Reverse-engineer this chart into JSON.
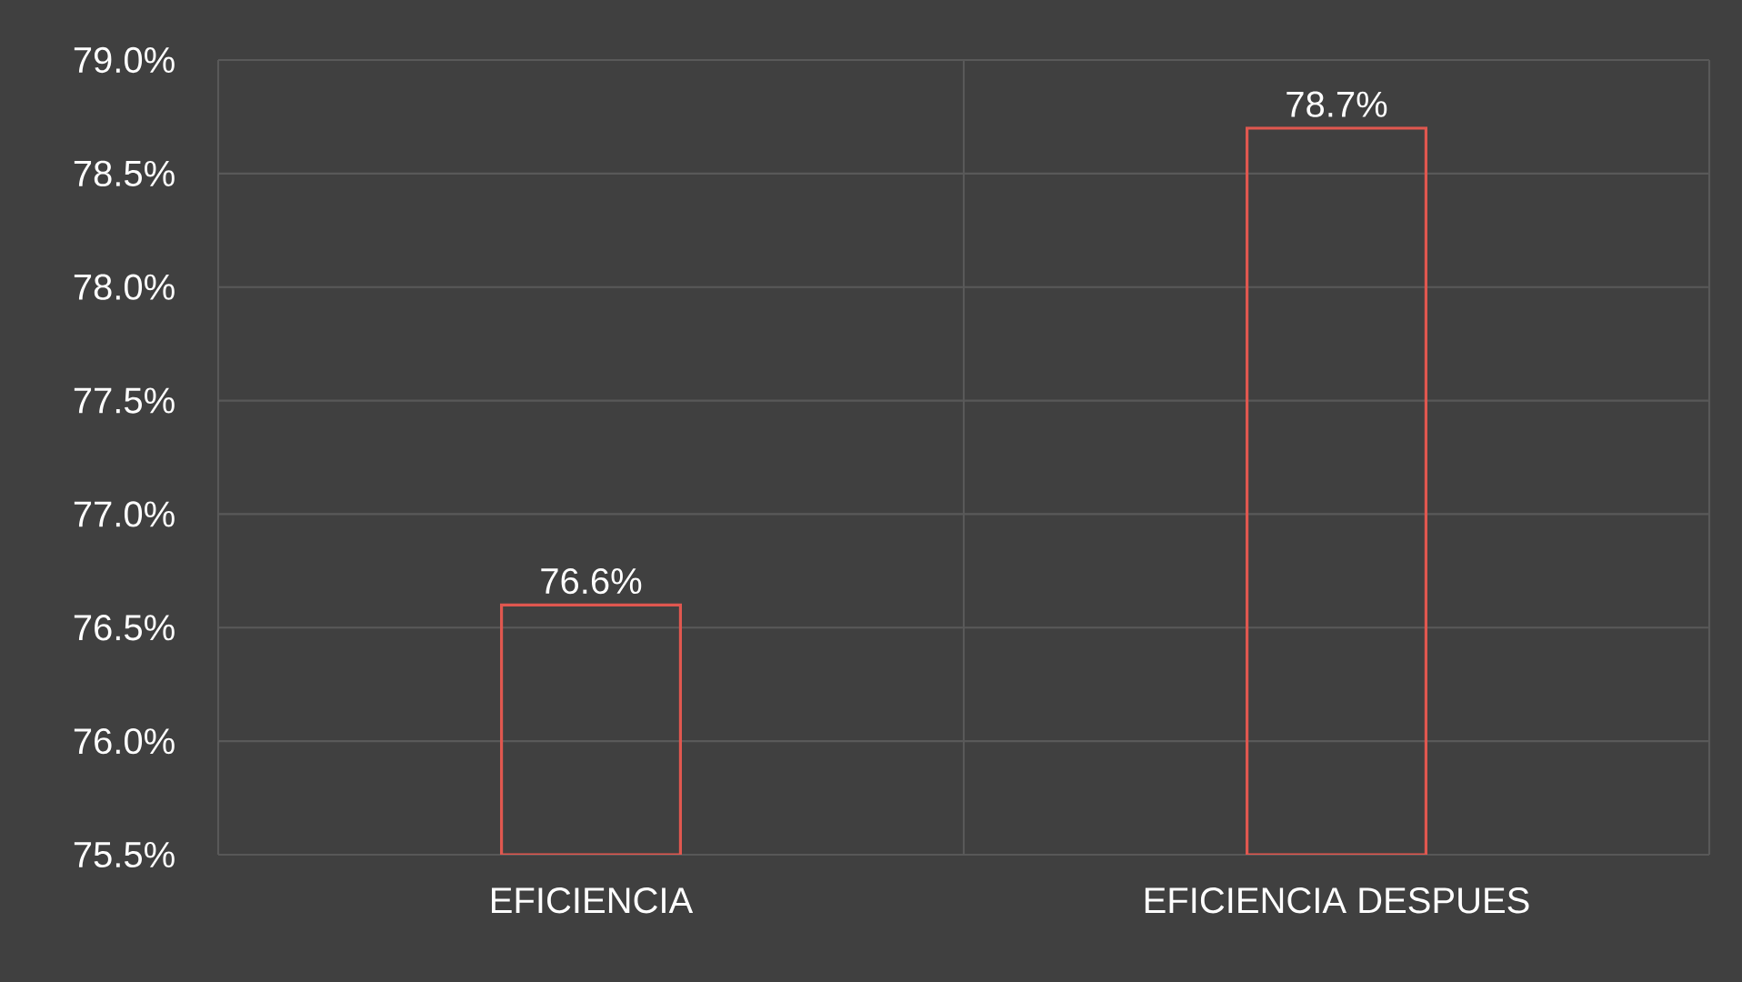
{
  "chart_data": {
    "type": "bar",
    "categories": [
      "EFICIENCIA",
      "EFICIENCIA DESPUES"
    ],
    "values": [
      76.6,
      78.7
    ],
    "value_labels": [
      "76.6%",
      "78.7%"
    ],
    "color": "#e0574f",
    "ylim": [
      75.5,
      79.0
    ],
    "yticks": [
      {
        "value": 75.5,
        "label": "75.5%"
      },
      {
        "value": 76.0,
        "label": "76.0%"
      },
      {
        "value": 76.5,
        "label": "76.5%"
      },
      {
        "value": 77.0,
        "label": "77.0%"
      },
      {
        "value": 77.5,
        "label": "77.5%"
      },
      {
        "value": 78.0,
        "label": "78.0%"
      },
      {
        "value": 78.5,
        "label": "78.5%"
      },
      {
        "value": 79.0,
        "label": "79.0%"
      }
    ],
    "grid": true
  }
}
